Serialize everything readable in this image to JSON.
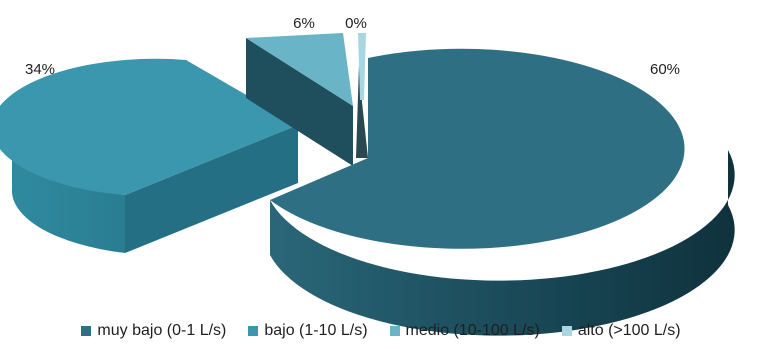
{
  "chart_data": {
    "type": "pie",
    "style": "3d-exploded",
    "title": "",
    "categories": [
      "muy bajo (0-1 L/s)",
      "bajo (1-10 L/s)",
      "medio (10-100 L/s)",
      "alto (>100 L/s)"
    ],
    "values": [
      60,
      34,
      6,
      0
    ],
    "data_labels": [
      "60%",
      "34%",
      "6%",
      "0%"
    ],
    "colors": [
      "#2e6f83",
      "#3a97ad",
      "#69b4c7",
      "#a9d6e3"
    ],
    "legend_position": "bottom"
  }
}
